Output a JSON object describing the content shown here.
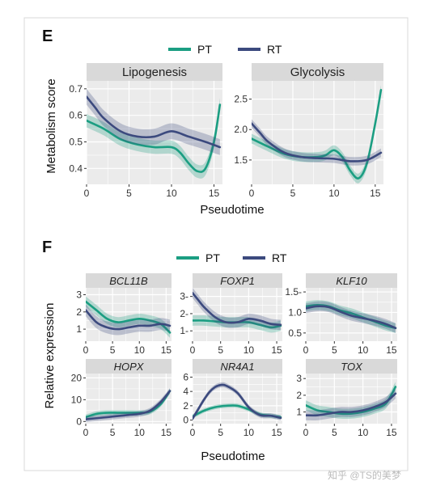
{
  "colors": {
    "PT": "#1b9e82",
    "RT": "#3c4a7e"
  },
  "watermark": "知乎 @TS的美梦",
  "chart_data": [
    {
      "panel": "E",
      "type": "line",
      "ylabel": "Metabolism score",
      "xlabel": "Pseudotime",
      "legend": [
        "PT",
        "RT"
      ],
      "legend_position": "top",
      "grid": true,
      "facets": [
        {
          "title": "Lipogenesis",
          "xlim": [
            0,
            16
          ],
          "ylim": [
            0.34,
            0.73
          ],
          "xticks": [
            0,
            5,
            10,
            15
          ],
          "yticks": [
            0.4,
            0.5,
            0.6,
            0.7
          ],
          "ytick_labels": [
            "0.4",
            "0.5",
            "0.6",
            "0.7"
          ],
          "series": [
            {
              "name": "PT",
              "x": [
                0,
                2,
                4,
                6,
                8,
                10,
                11,
                12,
                13,
                14,
                15,
                15.7
              ],
              "y": [
                0.58,
                0.55,
                0.51,
                0.49,
                0.48,
                0.48,
                0.46,
                0.42,
                0.39,
                0.4,
                0.5,
                0.64
              ],
              "band": 0.025
            },
            {
              "name": "RT",
              "x": [
                0,
                1,
                2,
                4,
                6,
                8,
                10,
                12,
                14,
                15.7
              ],
              "y": [
                0.67,
                0.63,
                0.59,
                0.54,
                0.52,
                0.52,
                0.54,
                0.52,
                0.5,
                0.48
              ],
              "band": 0.03
            }
          ]
        },
        {
          "title": "Glycolysis",
          "xlim": [
            0,
            16
          ],
          "ylim": [
            1.1,
            2.8
          ],
          "xticks": [
            0,
            5,
            10,
            15
          ],
          "yticks": [
            1.5,
            2.0,
            2.5
          ],
          "ytick_labels": [
            "1.5",
            "2.0",
            "2.5"
          ],
          "series": [
            {
              "name": "PT",
              "x": [
                0,
                2,
                4,
                6,
                8,
                9,
                10,
                11,
                12,
                13,
                14,
                15,
                15.7
              ],
              "y": [
                1.85,
                1.72,
                1.6,
                1.55,
                1.55,
                1.58,
                1.66,
                1.55,
                1.32,
                1.2,
                1.45,
                2.1,
                2.65
              ],
              "band": 0.08
            },
            {
              "name": "RT",
              "x": [
                0,
                1,
                2,
                4,
                6,
                8,
                10,
                12,
                14,
                15.7
              ],
              "y": [
                2.1,
                1.95,
                1.8,
                1.62,
                1.55,
                1.53,
                1.52,
                1.48,
                1.5,
                1.62
              ],
              "band": 0.07
            }
          ]
        }
      ]
    },
    {
      "panel": "F",
      "type": "line",
      "ylabel": "Relative expression",
      "xlabel": "Pseudotime",
      "legend": [
        "PT",
        "RT"
      ],
      "legend_position": "top",
      "grid": true,
      "facets": [
        {
          "title": "BCL11B",
          "xlim": [
            0,
            16
          ],
          "ylim": [
            0.3,
            3.4
          ],
          "xticks": [
            0,
            5,
            10,
            15
          ],
          "yticks": [
            1,
            2,
            3
          ],
          "ytick_labels": [
            "1",
            "2",
            "3"
          ],
          "series": [
            {
              "name": "PT",
              "x": [
                0,
                2,
                4,
                6,
                8,
                10,
                12,
                14,
                15.7
              ],
              "y": [
                2.6,
                2.1,
                1.6,
                1.4,
                1.5,
                1.6,
                1.5,
                1.3,
                0.8
              ],
              "band": 0.3
            },
            {
              "name": "RT",
              "x": [
                0,
                2,
                4,
                6,
                8,
                10,
                12,
                14,
                15.7
              ],
              "y": [
                2.1,
                1.4,
                1.1,
                1.0,
                1.1,
                1.2,
                1.2,
                1.3,
                1.2
              ],
              "band": 0.35
            }
          ]
        },
        {
          "title": "FOXP1",
          "xlim": [
            0,
            16
          ],
          "ylim": [
            0.4,
            3.5
          ],
          "xticks": [
            0,
            5,
            10,
            15
          ],
          "yticks": [
            1,
            2,
            3
          ],
          "ytick_labels": [
            "1-",
            "2-",
            "3-"
          ],
          "series": [
            {
              "name": "PT",
              "x": [
                0,
                2,
                4,
                6,
                8,
                10,
                12,
                14,
                15.7
              ],
              "y": [
                1.6,
                1.6,
                1.55,
                1.5,
                1.5,
                1.5,
                1.35,
                1.2,
                1.3
              ],
              "band": 0.3
            },
            {
              "name": "RT",
              "x": [
                0,
                1,
                2,
                4,
                6,
                8,
                10,
                12,
                14,
                15.7
              ],
              "y": [
                3.2,
                2.8,
                2.4,
                1.8,
                1.5,
                1.5,
                1.7,
                1.6,
                1.4,
                1.35
              ],
              "band": 0.3
            }
          ]
        },
        {
          "title": "KLF10",
          "xlim": [
            0,
            16
          ],
          "ylim": [
            0.3,
            1.6
          ],
          "xticks": [
            0,
            5,
            10,
            15
          ],
          "yticks": [
            0.5,
            1.0,
            1.5
          ],
          "ytick_labels": [
            "0.5",
            "1.0",
            "1.5-"
          ],
          "series": [
            {
              "name": "PT",
              "x": [
                0,
                2,
                4,
                6,
                8,
                10,
                12,
                14,
                15.7
              ],
              "y": [
                1.15,
                1.18,
                1.15,
                1.05,
                0.98,
                0.88,
                0.78,
                0.68,
                0.62
              ],
              "band": 0.12
            },
            {
              "name": "RT",
              "x": [
                0,
                2,
                4,
                6,
                8,
                10,
                12,
                14,
                15.7
              ],
              "y": [
                1.1,
                1.15,
                1.13,
                1.02,
                0.92,
                0.86,
                0.8,
                0.72,
                0.62
              ],
              "band": 0.12
            }
          ]
        },
        {
          "title": "HOPX",
          "xlim": [
            0,
            16
          ],
          "ylim": [
            -1,
            22
          ],
          "xticks": [
            0,
            5,
            10,
            15
          ],
          "yticks": [
            0,
            10,
            20
          ],
          "ytick_labels": [
            "0",
            "10",
            "20"
          ],
          "series": [
            {
              "name": "PT",
              "x": [
                0,
                2,
                4,
                6,
                8,
                10,
                12,
                14,
                15.7
              ],
              "y": [
                2,
                3.5,
                4,
                4,
                4,
                4,
                4.5,
                8,
                14
              ],
              "band": 1.2
            },
            {
              "name": "RT",
              "x": [
                0,
                2,
                4,
                6,
                8,
                10,
                12,
                14,
                15.7
              ],
              "y": [
                1,
                1.5,
                2,
                2.5,
                3,
                3.5,
                5,
                9,
                14
              ],
              "band": 1.3
            }
          ]
        },
        {
          "title": "NR4A1",
          "xlim": [
            0,
            16
          ],
          "ylim": [
            -0.5,
            6.5
          ],
          "xticks": [
            0,
            5,
            10,
            15
          ],
          "yticks": [
            0,
            2,
            4,
            6
          ],
          "ytick_labels": [
            "0",
            "2",
            "4",
            "6"
          ],
          "series": [
            {
              "name": "PT",
              "x": [
                0,
                2,
                4,
                6,
                8,
                10,
                12,
                14,
                15.7
              ],
              "y": [
                0.5,
                1.3,
                1.8,
                2.0,
                2.0,
                1.5,
                0.8,
                0.6,
                0.4
              ],
              "band": 0.3
            },
            {
              "name": "RT",
              "x": [
                0,
                1,
                2,
                3,
                4,
                5,
                6,
                8,
                10,
                12,
                14,
                15.7
              ],
              "y": [
                0.2,
                1.5,
                2.8,
                3.9,
                4.6,
                4.9,
                4.8,
                3.8,
                1.8,
                0.7,
                0.6,
                0.3
              ],
              "band": 0.35
            }
          ]
        },
        {
          "title": "TOX",
          "xlim": [
            0,
            16
          ],
          "ylim": [
            0.3,
            3.3
          ],
          "xticks": [
            0,
            5,
            10,
            15
          ],
          "yticks": [
            1,
            2,
            3
          ],
          "ytick_labels": [
            "1",
            "2",
            "3"
          ],
          "series": [
            {
              "name": "PT",
              "x": [
                0,
                2,
                4,
                6,
                8,
                10,
                12,
                14,
                15.7
              ],
              "y": [
                1.4,
                1.1,
                1.0,
                0.9,
                0.9,
                1.0,
                1.2,
                1.5,
                2.5
              ],
              "band": 0.3
            },
            {
              "name": "RT",
              "x": [
                0,
                2,
                4,
                6,
                8,
                10,
                12,
                14,
                15.7
              ],
              "y": [
                0.8,
                0.8,
                0.9,
                1.0,
                1.0,
                1.1,
                1.3,
                1.6,
                2.1
              ],
              "band": 0.3
            }
          ]
        }
      ]
    }
  ]
}
